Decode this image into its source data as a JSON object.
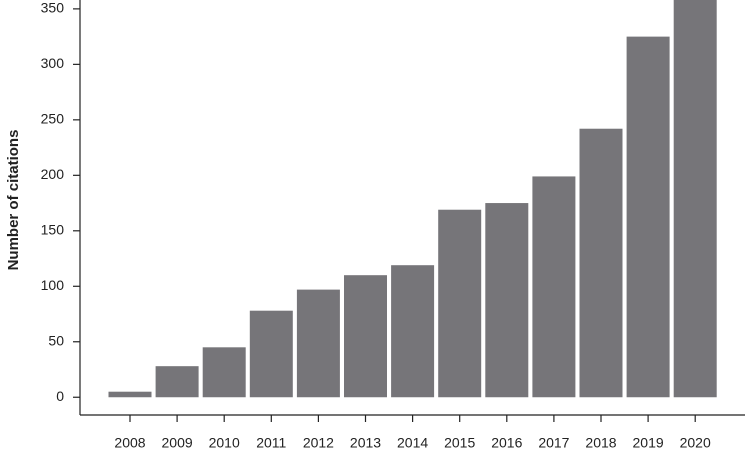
{
  "chart_data": {
    "type": "bar",
    "y_label": "Number of citations",
    "categories": [
      "2008",
      "2009",
      "2010",
      "2011",
      "2012",
      "2013",
      "2014",
      "2015",
      "2016",
      "2017",
      "2018",
      "2019",
      "2020"
    ],
    "values": [
      5,
      28,
      45,
      78,
      97,
      110,
      119,
      169,
      175,
      199,
      242,
      325,
      358
    ],
    "color": "#767579",
    "ylim": [
      -16,
      358
    ],
    "yticks": [
      0,
      50,
      100,
      150,
      200,
      250,
      300,
      350
    ],
    "grid": false
  }
}
